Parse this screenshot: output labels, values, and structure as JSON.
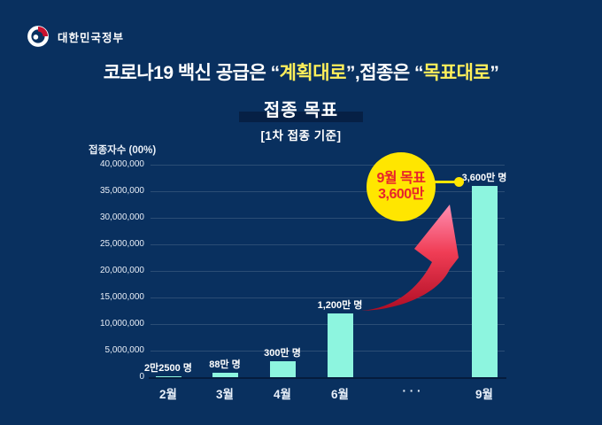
{
  "header": {
    "brand": "대한민국정부"
  },
  "title": {
    "parts": [
      {
        "t": "코로나19 백신 공급은 ",
        "c": "w"
      },
      {
        "t": "“",
        "c": "w"
      },
      {
        "t": "계획대로",
        "c": "y"
      },
      {
        "t": "”",
        "c": "w"
      },
      {
        "t": ",접종은 ",
        "c": "w"
      },
      {
        "t": "“",
        "c": "w"
      },
      {
        "t": "목표대로",
        "c": "y"
      },
      {
        "t": "”",
        "c": "w"
      }
    ]
  },
  "chart_data": {
    "type": "bar",
    "title": "접종 목표",
    "subtitle": "[1차 접종 기준]",
    "ylabel": "접종자수 (00%)",
    "ylim": [
      0,
      40000000
    ],
    "ytick_interval": 5000000,
    "grid": true,
    "categories": [
      "2월",
      "3월",
      "4월",
      "6월",
      "· · ·",
      "9월"
    ],
    "values": [
      22500,
      880000,
      3000000,
      12000000,
      null,
      36000000
    ],
    "bar_labels": [
      "2만2500 명",
      "88만 명",
      "300만 명",
      "1,200만 명",
      null,
      "3,600만 명"
    ],
    "annotation": {
      "line1": "9월 목표",
      "line2": "3,600만"
    }
  },
  "colors": {
    "background": "#09305f",
    "bar": "#8df5df",
    "accent_yellow": "#ffe600",
    "title_yellow": "#ffef5a",
    "badge_text_red": "#e8232c",
    "arrow_top": "#ff8fb2",
    "arrow_bottom": "#b00d24"
  }
}
